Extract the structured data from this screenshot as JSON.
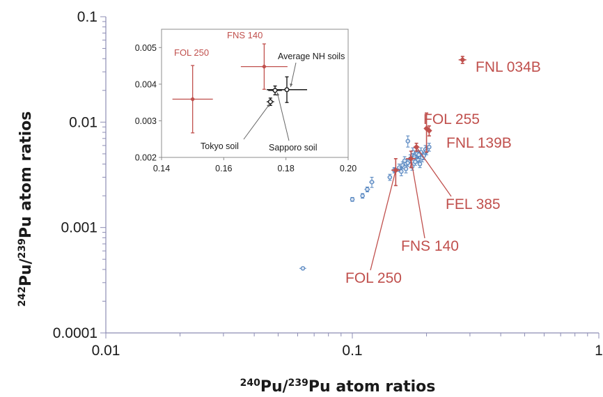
{
  "chart_data": [
    {
      "type": "scatter",
      "id": "main",
      "xscale": "log",
      "yscale": "log",
      "xlim": [
        0.01,
        1
      ],
      "ylim": [
        0.0001,
        0.1
      ],
      "x_ticks": [
        {
          "value": 0.01,
          "label": "0.01"
        },
        {
          "value": 0.1,
          "label": "0.1"
        },
        {
          "value": 1,
          "label": "1"
        }
      ],
      "y_ticks": [
        {
          "value": 0.0001,
          "label": "0.0001"
        },
        {
          "value": 0.001,
          "label": "0.001"
        },
        {
          "value": 0.01,
          "label": "0.01"
        },
        {
          "value": 0.1,
          "label": "0.1"
        }
      ],
      "xlabel": {
        "sup1": "240",
        "text1": "Pu/",
        "sup2": "239",
        "text2": "Pu atom ratios"
      },
      "ylabel": {
        "sup1": "242",
        "text1": "Pu/",
        "sup2": "239",
        "text2": "Pu atom ratios"
      },
      "colors": {
        "blue": "#4f81bd",
        "red": "#c0504d",
        "axis": "#8c8cb4"
      },
      "series": [
        {
          "color": "blue",
          "points": [
            {
              "x": 0.063,
              "y": 0.00041,
              "xerr": 0.002,
              "yerr": 1e-05
            },
            {
              "x": 0.1,
              "y": 0.00185,
              "xerr": 0.002,
              "yerr": 8e-05
            },
            {
              "x": 0.11,
              "y": 0.002,
              "xerr": 0.002,
              "yerr": 0.0001
            },
            {
              "x": 0.115,
              "y": 0.0023,
              "xerr": 0.003,
              "yerr": 0.00012
            },
            {
              "x": 0.12,
              "y": 0.0027,
              "xerr": 0.003,
              "yerr": 0.0003
            },
            {
              "x": 0.142,
              "y": 0.003,
              "xerr": 0.003,
              "yerr": 0.0002
            },
            {
              "x": 0.148,
              "y": 0.0035,
              "xerr": 0.003,
              "yerr": 0.0002
            },
            {
              "x": 0.155,
              "y": 0.0037,
              "xerr": 0.003,
              "yerr": 0.0003
            },
            {
              "x": 0.16,
              "y": 0.0039,
              "xerr": 0.003,
              "yerr": 0.0003
            },
            {
              "x": 0.165,
              "y": 0.0036,
              "xerr": 0.003,
              "yerr": 0.0003
            },
            {
              "x": 0.168,
              "y": 0.0041,
              "xerr": 0.003,
              "yerr": 0.0003
            },
            {
              "x": 0.168,
              "y": 0.0066,
              "xerr": 0.003,
              "yerr": 0.0008
            },
            {
              "x": 0.172,
              "y": 0.0045,
              "xerr": 0.003,
              "yerr": 0.0004
            },
            {
              "x": 0.175,
              "y": 0.0038,
              "xerr": 0.003,
              "yerr": 0.0003
            },
            {
              "x": 0.178,
              "y": 0.0047,
              "xerr": 0.004,
              "yerr": 0.0004
            },
            {
              "x": 0.18,
              "y": 0.0042,
              "xerr": 0.003,
              "yerr": 0.0003
            },
            {
              "x": 0.183,
              "y": 0.005,
              "xerr": 0.004,
              "yerr": 0.0004
            },
            {
              "x": 0.185,
              "y": 0.0044,
              "xerr": 0.003,
              "yerr": 0.0003
            },
            {
              "x": 0.188,
              "y": 0.004,
              "xerr": 0.003,
              "yerr": 0.0003
            },
            {
              "x": 0.19,
              "y": 0.0052,
              "xerr": 0.004,
              "yerr": 0.0005
            },
            {
              "x": 0.192,
              "y": 0.0046,
              "xerr": 0.003,
              "yerr": 0.0004
            },
            {
              "x": 0.195,
              "y": 0.0048,
              "xerr": 0.004,
              "yerr": 0.0004
            },
            {
              "x": 0.198,
              "y": 0.0055,
              "xerr": 0.004,
              "yerr": 0.0005
            },
            {
              "x": 0.2,
              "y": 0.0053,
              "xerr": 0.004,
              "yerr": 0.0004
            },
            {
              "x": 0.205,
              "y": 0.0058,
              "xerr": 0.004,
              "yerr": 0.0005
            },
            {
              "x": 0.158,
              "y": 0.0034,
              "xerr": 0.003,
              "yerr": 0.0003
            },
            {
              "x": 0.163,
              "y": 0.0043,
              "xerr": 0.003,
              "yerr": 0.0004
            },
            {
              "x": 0.176,
              "y": 0.0052,
              "xerr": 0.004,
              "yerr": 0.0005
            },
            {
              "x": 0.186,
              "y": 0.0049,
              "xerr": 0.004,
              "yerr": 0.0004
            }
          ]
        },
        {
          "color": "red",
          "points": [
            {
              "label": "FNL 034B",
              "x": 0.28,
              "y": 0.039,
              "xerr": 0.01,
              "yerr": 0.003
            },
            {
              "label": "FOL 255",
              "x": 0.2,
              "y": 0.0087,
              "xerr": 0.004,
              "yerr": 0.0035
            },
            {
              "label": "FNL 139B",
              "x": 0.205,
              "y": 0.0083,
              "xerr": 0.005,
              "yerr": 0.0009
            },
            {
              "label": "FEL 385",
              "x": 0.182,
              "y": 0.0058,
              "xerr": 0.005,
              "yerr": 0.0005
            },
            {
              "label": "FNS 140",
              "x": 0.173,
              "y": 0.0045,
              "xerr": 0.008,
              "yerr": 0.0008
            },
            {
              "label": "FOL 250",
              "x": 0.15,
              "y": 0.0035,
              "xerr": 0.006,
              "yerr": 0.001
            }
          ]
        }
      ],
      "annotations": [
        {
          "text": "FNL 034B"
        },
        {
          "text": "FOL 255"
        },
        {
          "text": "FNL 139B"
        },
        {
          "text": "FEL 385"
        },
        {
          "text": "FNS 140"
        },
        {
          "text": "FOL 250"
        }
      ]
    },
    {
      "type": "scatter",
      "id": "inset",
      "xlim": [
        0.14,
        0.2
      ],
      "ylim": [
        0.002,
        0.0055
      ],
      "x_ticks": [
        {
          "value": 0.14,
          "label": "0.14"
        },
        {
          "value": 0.16,
          "label": "0.16"
        },
        {
          "value": 0.18,
          "label": "0.18"
        },
        {
          "value": 0.2,
          "label": "0.20"
        }
      ],
      "y_ticks": [
        {
          "value": 0.002,
          "label": "0.002"
        },
        {
          "value": 0.003,
          "label": "0.003"
        },
        {
          "value": 0.004,
          "label": "0.004"
        },
        {
          "value": 0.005,
          "label": "0.005"
        }
      ],
      "grid": false,
      "points": [
        {
          "label": "FOL 250",
          "x": 0.15,
          "y": 0.00359,
          "xerr": 0.0065,
          "yerr": 0.00092,
          "color": "red"
        },
        {
          "label": "FNS 140",
          "x": 0.173,
          "y": 0.00448,
          "xerr": 0.0075,
          "yerr": 0.00062,
          "color": "red"
        },
        {
          "label": "Average NH soils",
          "x": 0.1803,
          "y": 0.00385,
          "xerr": 0.0065,
          "yerr": 0.00035,
          "color": "black"
        },
        {
          "label": "Tokyo soil",
          "x": 0.175,
          "y": 0.00352,
          "xerr": 0.0012,
          "yerr": 0.0001,
          "color": "black"
        },
        {
          "label": "Sapporo soil",
          "x": 0.1765,
          "y": 0.00383,
          "xerr": 0.0022,
          "yerr": 0.00012,
          "color": "black"
        }
      ],
      "annotations": [
        {
          "text": "FOL 250"
        },
        {
          "text": "FNS 140"
        },
        {
          "text": "Average NH soils"
        },
        {
          "text": "Tokyo soil"
        },
        {
          "text": "Sapporo soil"
        }
      ]
    }
  ]
}
